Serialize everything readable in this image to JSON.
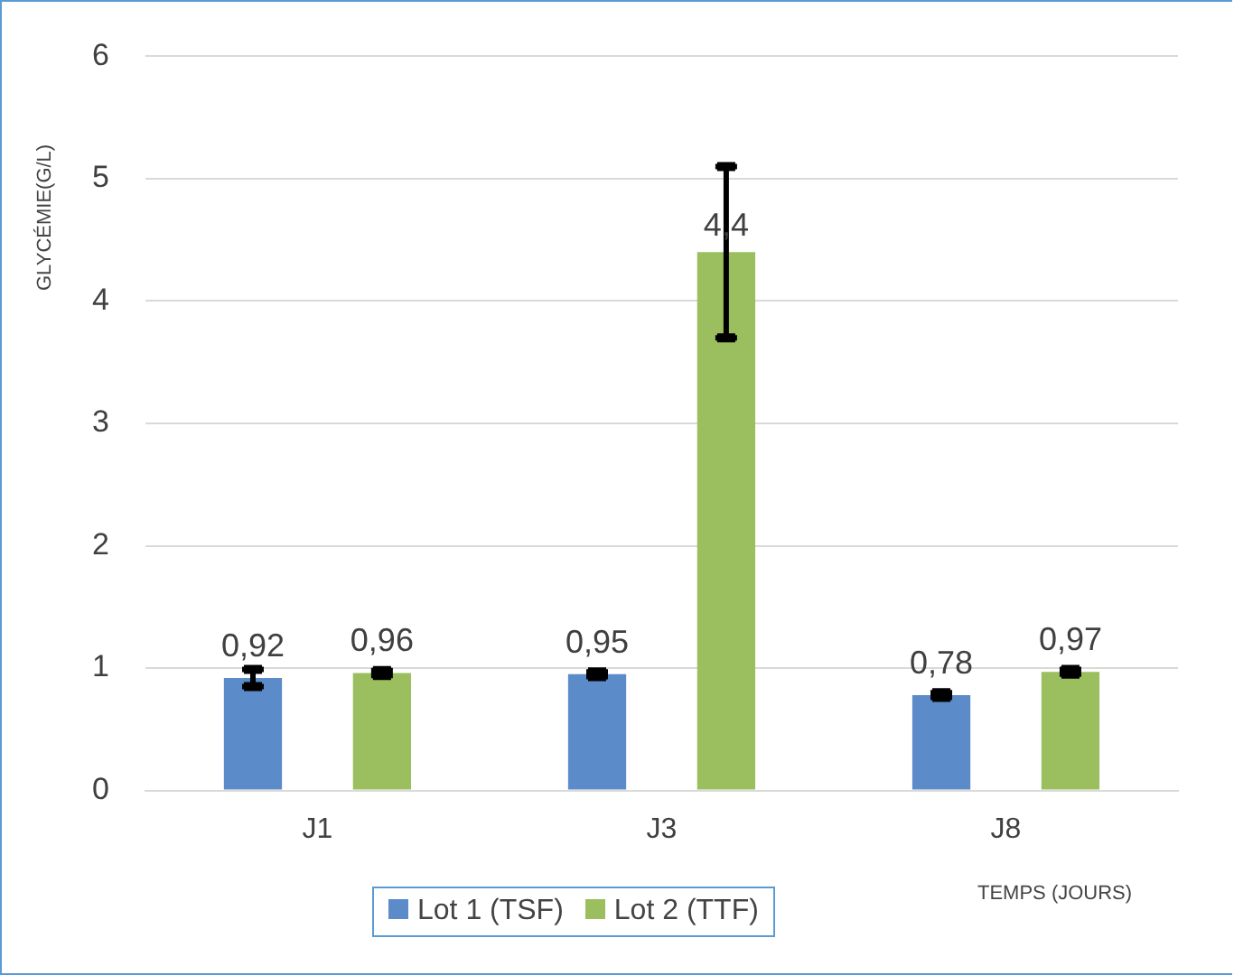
{
  "chart_data": {
    "type": "bar",
    "xlabel": "TEMPS (JOURS)",
    "ylabel": "GLYCÉMIE(G/L)",
    "categories": [
      "J1",
      "J3",
      "J8"
    ],
    "series": [
      {
        "name": "Lot 1 (TSF)",
        "color": "#5b8bc9",
        "values": [
          0.92,
          0.95,
          0.78
        ],
        "errors": [
          0.07,
          0.02,
          0.02
        ],
        "value_labels": [
          "0,92",
          "0,95",
          "0,78"
        ]
      },
      {
        "name": "Lot 2 (TTF)",
        "color": "#9bbf5e",
        "values": [
          0.96,
          4.4,
          0.97
        ],
        "errors": [
          0.02,
          0.7,
          0.02
        ],
        "value_labels": [
          "0,96",
          "4,4",
          "0,97"
        ]
      }
    ],
    "ylim": [
      0,
      6
    ],
    "yticks": [
      0,
      1,
      2,
      3,
      4,
      5,
      6
    ],
    "grid": "y",
    "legend": "bottom"
  }
}
